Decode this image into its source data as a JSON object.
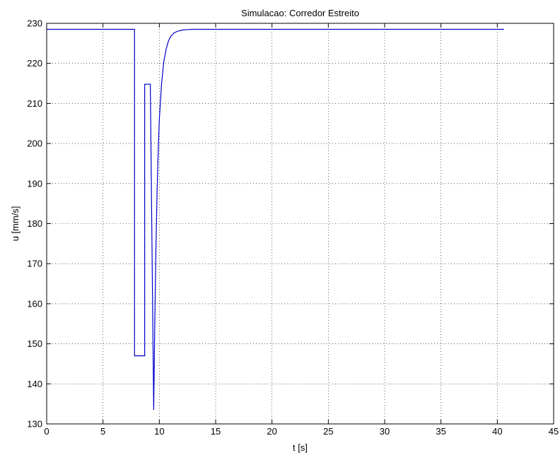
{
  "chart_data": {
    "type": "line",
    "title": "Simulacao: Corredor Estreito",
    "xlabel": "t [s]",
    "ylabel": "u [mm/s]",
    "xlim": [
      0,
      45
    ],
    "ylim": [
      130,
      230
    ],
    "xticks": [
      0,
      5,
      10,
      15,
      20,
      25,
      30,
      35,
      40,
      45
    ],
    "yticks": [
      130,
      140,
      150,
      160,
      170,
      180,
      190,
      200,
      210,
      220,
      230
    ],
    "grid": true,
    "series": [
      {
        "color": "#0000cc",
        "x": [
          0,
          7.8,
          7.8,
          8.4,
          8.4,
          8.7,
          8.7,
          9.2,
          9.2,
          9.5,
          9.6,
          9.7,
          9.8,
          9.9,
          10.0,
          10.2,
          10.4,
          10.6,
          10.8,
          11.0,
          11.3,
          11.6,
          12.0,
          12.5,
          13.0,
          40.6
        ],
        "y": [
          228.5,
          228.5,
          147,
          147,
          147,
          147,
          214.8,
          214.8,
          214.8,
          133.5,
          156,
          174,
          188,
          198,
          206,
          215,
          220.5,
          223.5,
          225.5,
          226.7,
          227.6,
          228.0,
          228.3,
          228.45,
          228.5,
          228.5
        ]
      }
    ]
  }
}
